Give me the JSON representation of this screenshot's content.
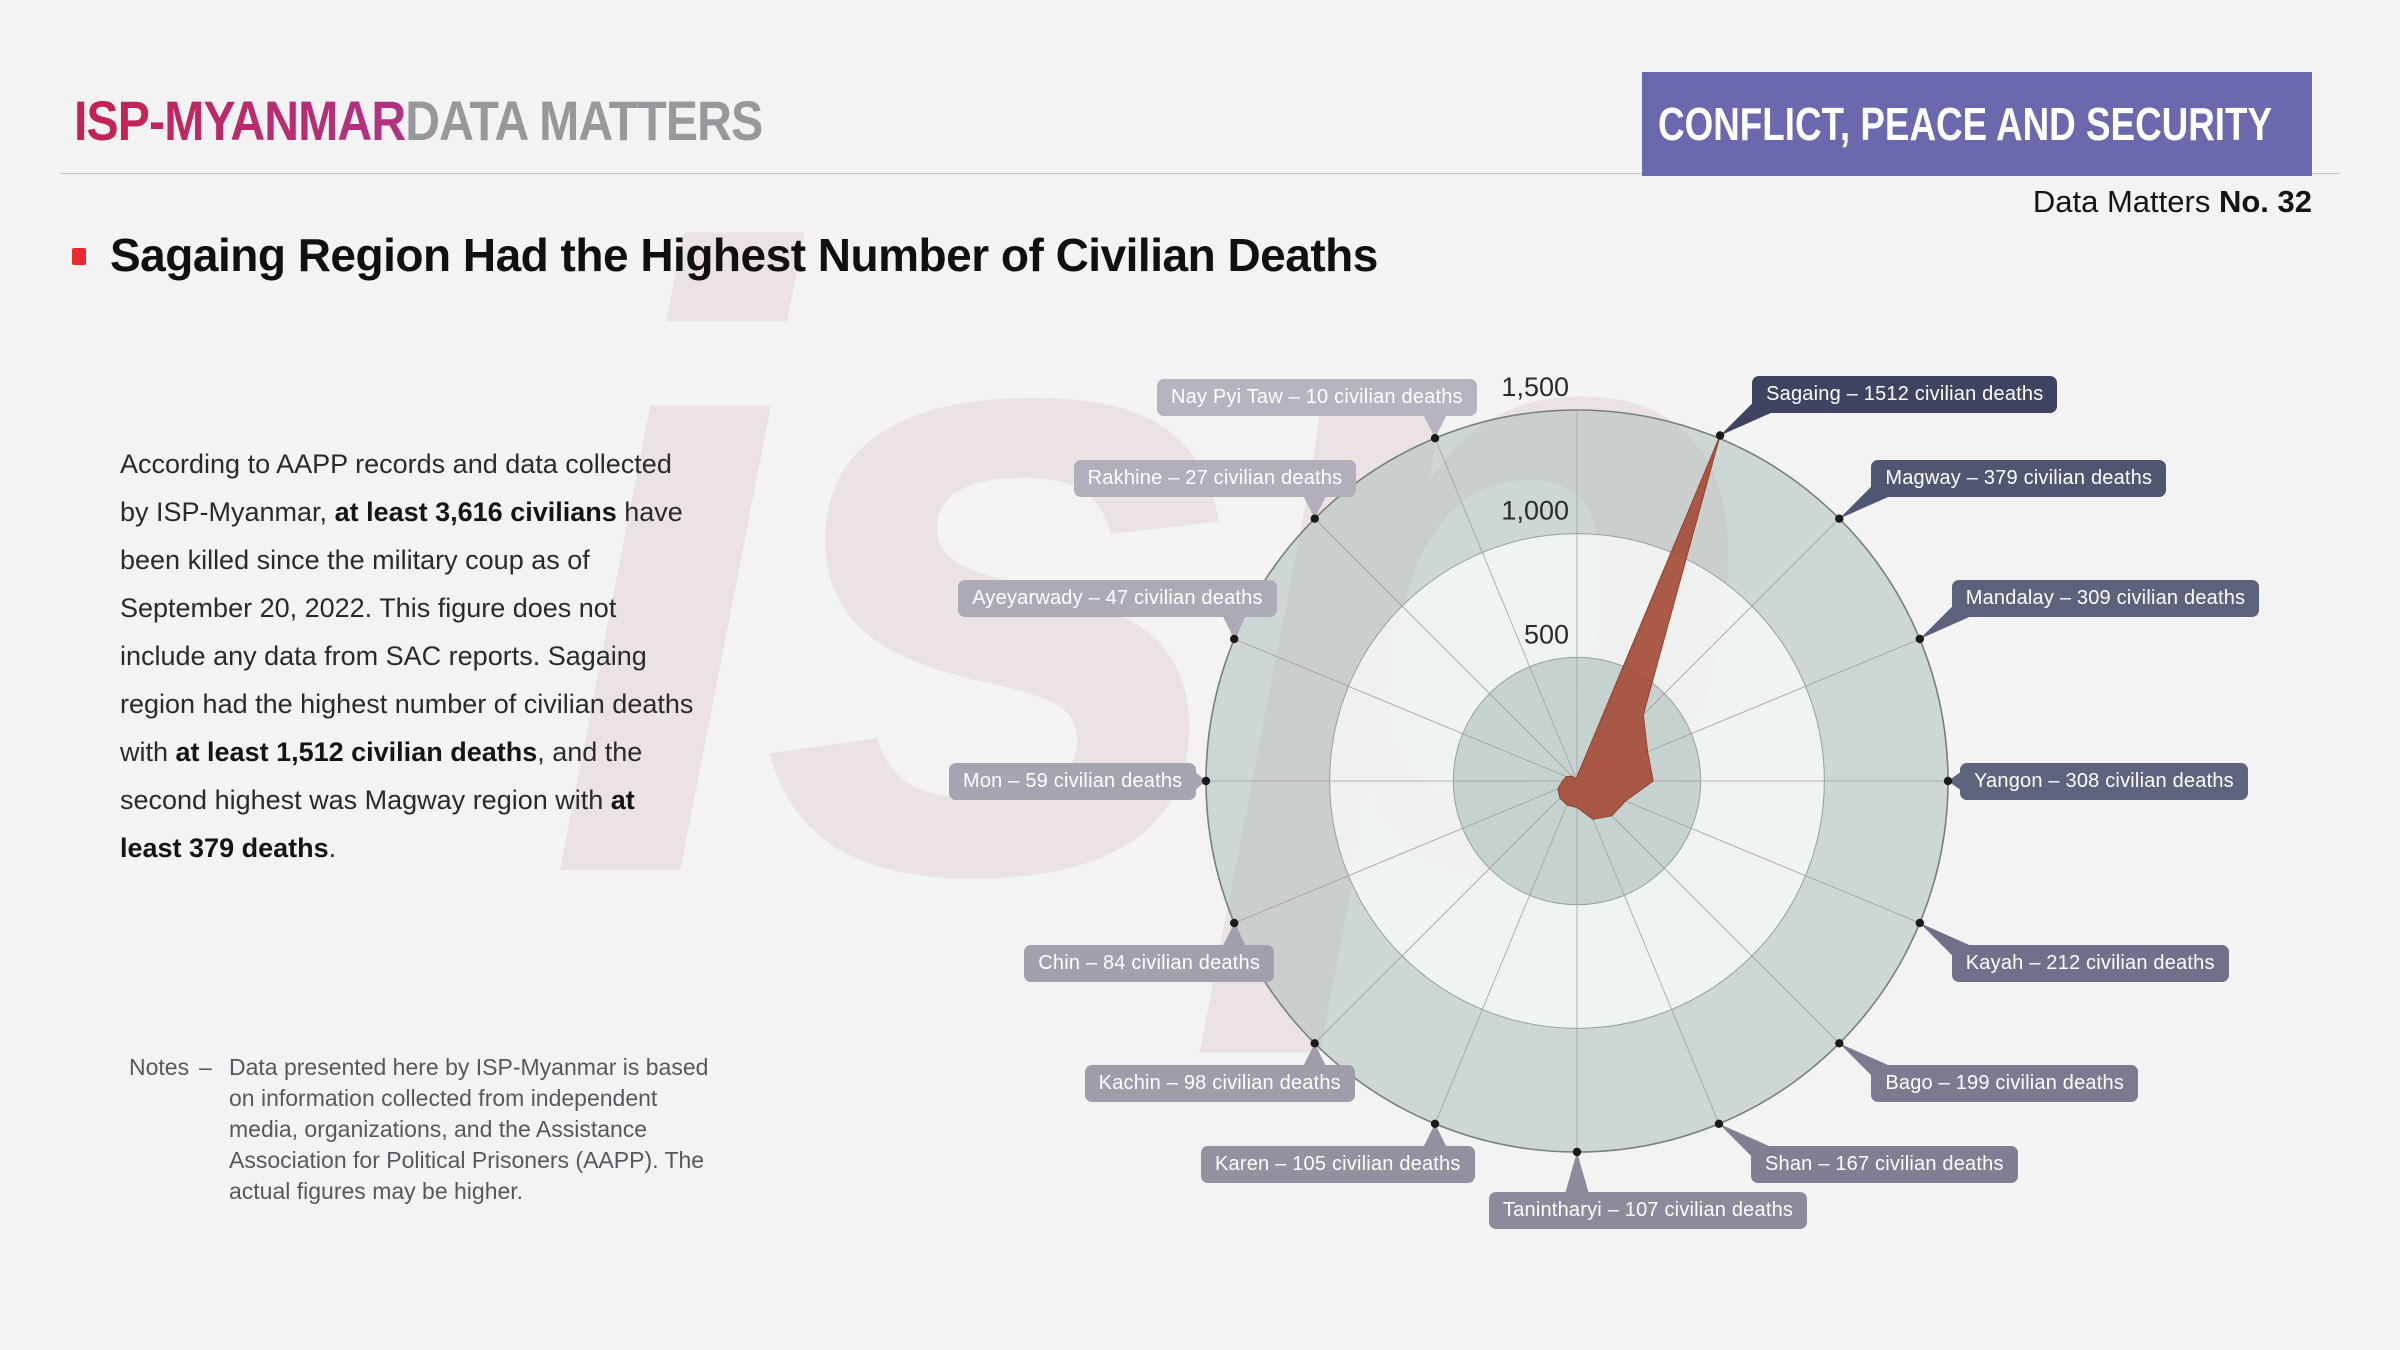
{
  "header": {
    "logo_primary": "ISP-MYANMAR",
    "logo_secondary": "DATA MATTERS",
    "banner_text": "CONFLICT, PEACE AND SECURITY",
    "banner_color": "#6a69ae",
    "issue_label": "Data Matters",
    "issue_no": "No. 32"
  },
  "headline": {
    "text": "Sagaing Region Had the Highest Number of Civilian Deaths",
    "bullet_color": "#e62a2e"
  },
  "body_text": {
    "runs": [
      {
        "t": "According to AAPP records and data collected by ISP-Myanmar, ",
        "b": false
      },
      {
        "t": "at least 3,616 civilians",
        "b": true
      },
      {
        "t": " have been killed since the military coup as of September 20, 2022. This figure does not include any data from SAC reports. Sagaing region had the highest number of civilian deaths with ",
        "b": false
      },
      {
        "t": "at least 1,512 civilian deaths",
        "b": true
      },
      {
        "t": ", and the second highest was Magway region with ",
        "b": false
      },
      {
        "t": "at least 379 deaths",
        "b": true
      },
      {
        "t": ".",
        "b": false
      }
    ]
  },
  "notes": {
    "label": "Notes",
    "dash": "–",
    "text": "Data presented here by ISP-Myanmar is based on information collected from independent media, organizations, and the Assistance Association for Political Prisoners (AAPP). The actual figures may be higher."
  },
  "watermark_text": "isp",
  "chart_data": {
    "type": "radar",
    "unit_suffix": "civilian deaths",
    "max_value": 1500,
    "angle_step_deg": 22.5,
    "num_spokes": 16,
    "rings": [
      {
        "value": 500,
        "label": "500"
      },
      {
        "value": 1000,
        "label": "1,000"
      },
      {
        "value": 1500,
        "label": "1,500"
      }
    ],
    "series_color": "#a64d39",
    "regions": [
      {
        "name": "Sagaing",
        "value": 1512,
        "angle_deg": 22.5,
        "color": "#3d4360",
        "label": "Sagaing – 1512 civilian deaths"
      },
      {
        "name": "Magway",
        "value": 379,
        "angle_deg": 45,
        "color": "#4f5672",
        "label": "Magway – 379 civilian deaths"
      },
      {
        "name": "Mandalay",
        "value": 309,
        "angle_deg": 67.5,
        "color": "#5c617c",
        "label": "Mandalay – 309 civilian deaths"
      },
      {
        "name": "Yangon",
        "value": 308,
        "angle_deg": 90,
        "color": "#5e637e",
        "label": "Yangon – 308 civilian deaths"
      },
      {
        "name": "Kayah",
        "value": 212,
        "angle_deg": 112.5,
        "color": "#6e7189",
        "label": "Kayah – 212 civilian deaths"
      },
      {
        "name": "Bago",
        "value": 199,
        "angle_deg": 135,
        "color": "#7c7a90",
        "label": "Bago – 199 civilian deaths"
      },
      {
        "name": "Shan",
        "value": 167,
        "angle_deg": 157.5,
        "color": "#807e93",
        "label": "Shan – 167 civilian deaths"
      },
      {
        "name": "Tanintharyi",
        "value": 107,
        "angle_deg": 180,
        "color": "#8c8a9b",
        "label": "Tanintharyi – 107 civilian deaths"
      },
      {
        "name": "Karen",
        "value": 105,
        "angle_deg": 202.5,
        "color": "#93909f",
        "label": "Karen – 105 civilian deaths"
      },
      {
        "name": "Kachin",
        "value": 98,
        "angle_deg": 225,
        "color": "#a09dab",
        "label": "Kachin – 98 civilian deaths"
      },
      {
        "name": "Chin",
        "value": 84,
        "angle_deg": 247.5,
        "color": "#a3a0ae",
        "label": "Chin – 84 civilian deaths"
      },
      {
        "name": "Mon",
        "value": 59,
        "angle_deg": 270,
        "color": "#a7a4b2",
        "label": "Mon – 59 civilian deaths"
      },
      {
        "name": "Ayeyarwady",
        "value": 47,
        "angle_deg": 292.5,
        "color": "#adaab7",
        "label": "Ayeyarwady – 47 civilian deaths"
      },
      {
        "name": "Rakhine",
        "value": 27,
        "angle_deg": 315,
        "color": "#b2afbb",
        "label": "Rakhine – 27 civilian deaths"
      },
      {
        "name": "Nay Pyi Taw",
        "value": 10,
        "angle_deg": 337.5,
        "color": "#b7b4bf",
        "label": "Nay Pyi Taw – 10 civilian deaths"
      }
    ]
  }
}
